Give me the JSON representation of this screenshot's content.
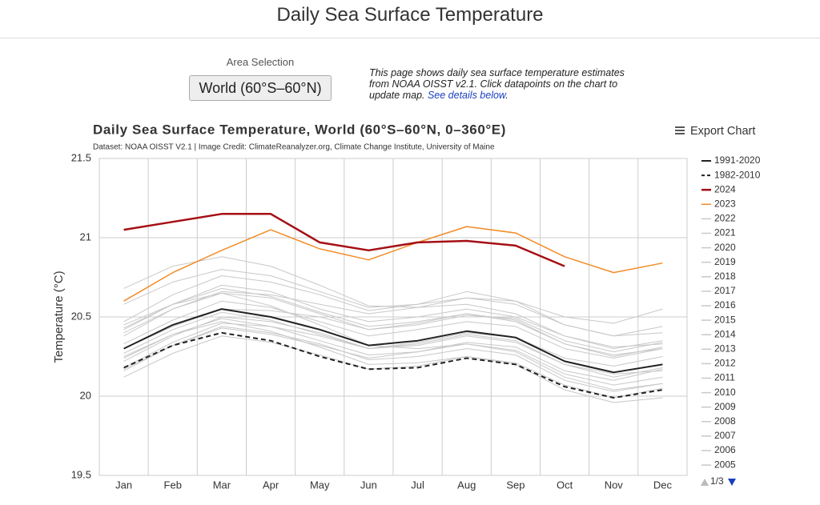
{
  "header": {
    "title": "Daily Sea Surface Temperature"
  },
  "controls": {
    "label": "Area Selection",
    "button": "World (60°S–60°N)",
    "description": [
      "This page shows daily sea surface temperature estimates from NOAA OISST v2.1. Click datapoints on the chart to update map. ",
      "See details below",
      "."
    ],
    "export": "Export Chart"
  },
  "chart_data": {
    "type": "line",
    "title": "Daily Sea Surface Temperature, World (60°S–60°N, 0–360°E)",
    "subtitle": "Dataset: NOAA OISST V2.1 | Image Credit: ClimateReanalyzer.org, Climate Change Institute, University of Maine",
    "y_label": "Temperature (°C)",
    "categories": [
      "Jan",
      "Feb",
      "Mar",
      "Apr",
      "May",
      "Jun",
      "Jul",
      "Aug",
      "Sep",
      "Oct",
      "Nov",
      "Dec"
    ],
    "ylim": [
      19.5,
      21.5
    ],
    "yticks": [
      19.5,
      20,
      20.5,
      21,
      21.5
    ],
    "grid": true,
    "legend": "right",
    "legend_page": "1/3",
    "series": [
      {
        "name": "1991-2020",
        "color": "#222222",
        "dash": "solid",
        "width": 2,
        "values": [
          20.3,
          20.45,
          20.55,
          20.5,
          20.42,
          20.32,
          20.35,
          20.41,
          20.37,
          20.22,
          20.15,
          20.2
        ]
      },
      {
        "name": "1982-2010",
        "color": "#222222",
        "dash": "dashed",
        "width": 2,
        "values": [
          20.18,
          20.32,
          20.4,
          20.35,
          20.25,
          20.17,
          20.18,
          20.24,
          20.2,
          20.06,
          19.99,
          20.04
        ]
      },
      {
        "name": "2024",
        "color": "#a50f15",
        "dash": "solid",
        "width": 2.5,
        "values": [
          21.05,
          21.1,
          21.15,
          21.15,
          20.97,
          20.92,
          20.97,
          20.98,
          20.95,
          20.82,
          null,
          null
        ]
      },
      {
        "name": "2023",
        "color": "#f28c28",
        "dash": "solid",
        "width": 1.5,
        "values": [
          20.6,
          20.78,
          20.92,
          21.05,
          20.93,
          20.86,
          20.97,
          21.07,
          21.03,
          20.88,
          20.78,
          20.84
        ]
      },
      {
        "name": "2022",
        "color": "#c8c8c8",
        "dash": "solid",
        "width": 1,
        "values": [
          20.45,
          20.58,
          20.7,
          20.66,
          20.55,
          20.47,
          20.5,
          20.55,
          20.5,
          20.38,
          20.31,
          20.33
        ]
      },
      {
        "name": "2021",
        "color": "#c8c8c8",
        "dash": "solid",
        "width": 1,
        "values": [
          20.38,
          20.55,
          20.65,
          20.62,
          20.52,
          20.42,
          20.46,
          20.52,
          20.48,
          20.33,
          20.25,
          20.31
        ]
      },
      {
        "name": "2020",
        "color": "#c8c8c8",
        "dash": "solid",
        "width": 1,
        "values": [
          20.58,
          20.72,
          20.8,
          20.76,
          20.66,
          20.56,
          20.58,
          20.62,
          20.58,
          20.45,
          20.38,
          20.4
        ]
      },
      {
        "name": "2019",
        "color": "#c8c8c8",
        "dash": "solid",
        "width": 1,
        "values": [
          20.47,
          20.64,
          20.76,
          20.72,
          20.64,
          20.54,
          20.58,
          20.66,
          20.6,
          20.45,
          20.38,
          20.44
        ]
      },
      {
        "name": "2018",
        "color": "#c8c8c8",
        "dash": "solid",
        "width": 1,
        "values": [
          20.33,
          20.48,
          20.6,
          20.56,
          20.47,
          20.38,
          20.42,
          20.47,
          20.44,
          20.3,
          20.24,
          20.3
        ]
      },
      {
        "name": "2017",
        "color": "#c8c8c8",
        "dash": "solid",
        "width": 1,
        "values": [
          20.43,
          20.58,
          20.68,
          20.63,
          20.53,
          20.44,
          20.47,
          20.52,
          20.47,
          20.33,
          20.26,
          20.3
        ]
      },
      {
        "name": "2016",
        "color": "#c8c8c8",
        "dash": "solid",
        "width": 1,
        "values": [
          20.68,
          20.82,
          20.88,
          20.82,
          20.7,
          20.57,
          20.56,
          20.58,
          20.52,
          20.38,
          20.3,
          20.35
        ]
      },
      {
        "name": "2015",
        "color": "#c8c8c8",
        "dash": "solid",
        "width": 1,
        "values": [
          20.4,
          20.55,
          20.66,
          20.64,
          20.58,
          20.52,
          20.56,
          20.62,
          20.6,
          20.5,
          20.46,
          20.55
        ]
      },
      {
        "name": "2014",
        "color": "#c8c8c8",
        "dash": "solid",
        "width": 1,
        "values": [
          20.3,
          20.44,
          20.55,
          20.54,
          20.5,
          20.42,
          20.45,
          20.51,
          20.49,
          20.35,
          20.28,
          20.34
        ]
      },
      {
        "name": "2013",
        "color": "#c8c8c8",
        "dash": "solid",
        "width": 1,
        "values": [
          20.27,
          20.42,
          20.53,
          20.48,
          20.39,
          20.3,
          20.32,
          20.38,
          20.34,
          20.2,
          20.12,
          20.18
        ]
      },
      {
        "name": "2012",
        "color": "#c8c8c8",
        "dash": "solid",
        "width": 1,
        "values": [
          20.22,
          20.38,
          20.5,
          20.47,
          20.4,
          20.3,
          20.33,
          20.39,
          20.35,
          20.2,
          20.14,
          20.16
        ]
      },
      {
        "name": "2011",
        "color": "#c8c8c8",
        "dash": "solid",
        "width": 1,
        "values": [
          20.16,
          20.32,
          20.44,
          20.4,
          20.33,
          20.23,
          20.25,
          20.3,
          20.26,
          20.1,
          20.03,
          20.08
        ]
      },
      {
        "name": "2010",
        "color": "#c8c8c8",
        "dash": "solid",
        "width": 1,
        "values": [
          20.42,
          20.58,
          20.65,
          20.57,
          20.45,
          20.32,
          20.3,
          20.33,
          20.28,
          20.12,
          20.04,
          20.08
        ]
      },
      {
        "name": "2009",
        "color": "#c8c8c8",
        "dash": "solid",
        "width": 1,
        "values": [
          20.18,
          20.34,
          20.46,
          20.44,
          20.38,
          20.3,
          20.34,
          20.4,
          20.37,
          20.24,
          20.19,
          20.25
        ]
      },
      {
        "name": "2008",
        "color": "#c8c8c8",
        "dash": "solid",
        "width": 1,
        "values": [
          20.12,
          20.27,
          20.38,
          20.34,
          20.26,
          20.17,
          20.19,
          20.25,
          20.21,
          20.07,
          19.99,
          20.05
        ]
      },
      {
        "name": "2007",
        "color": "#c8c8c8",
        "dash": "solid",
        "width": 1,
        "values": [
          20.25,
          20.39,
          20.47,
          20.41,
          20.31,
          20.2,
          20.21,
          20.25,
          20.2,
          20.04,
          19.96,
          19.99
        ]
      },
      {
        "name": "2006",
        "color": "#c8c8c8",
        "dash": "solid",
        "width": 1,
        "values": [
          20.17,
          20.32,
          20.43,
          20.39,
          20.32,
          20.24,
          20.28,
          20.34,
          20.31,
          20.16,
          20.1,
          20.17
        ]
      },
      {
        "name": "2005",
        "color": "#c8c8c8",
        "dash": "solid",
        "width": 1,
        "values": [
          20.24,
          20.39,
          20.49,
          20.44,
          20.35,
          20.26,
          20.28,
          20.33,
          20.29,
          20.14,
          20.07,
          20.12
        ]
      }
    ]
  }
}
